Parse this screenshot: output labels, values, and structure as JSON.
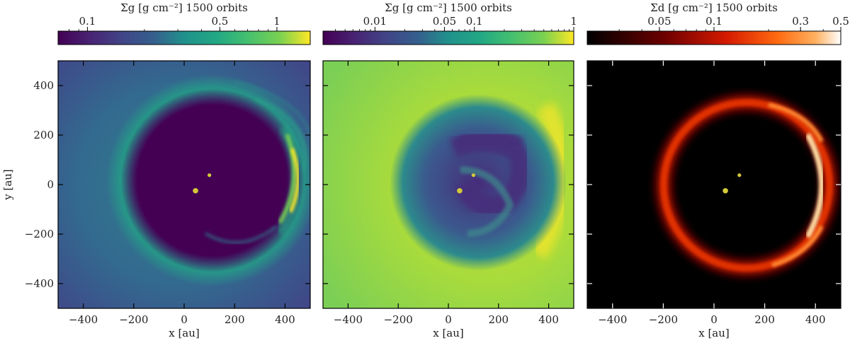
{
  "chart_data": [
    {
      "type": "heatmap",
      "title": "Σg [g cm⁻²] 1500 orbits",
      "xlabel": "x [au]",
      "ylabel": "y [au]",
      "xlim": [
        -500,
        500
      ],
      "ylim": [
        -500,
        500
      ],
      "colormap": "viridis",
      "colorbar": {
        "scale": "log",
        "range": [
          0.07,
          1.5
        ],
        "ticks": [
          0.1,
          0.5,
          1
        ],
        "tick_labels": [
          "0.1",
          "0.5",
          "1"
        ],
        "placement": "top"
      },
      "x_ticks": [
        -400,
        -200,
        0,
        200,
        400
      ],
      "x_tick_labels": [
        "−400",
        "−200",
        "0",
        "200",
        "400"
      ],
      "y_ticks": [
        -400,
        -200,
        0,
        200,
        400
      ],
      "y_tick_labels": [
        "−400",
        "−200",
        "0",
        "200",
        "400"
      ],
      "points": [
        {
          "x": 45,
          "y": -25
        },
        {
          "x": 100,
          "y": 38
        }
      ],
      "marker_color": "#d4c93a",
      "background_color": "#414487",
      "cavity_color": "#440154"
    },
    {
      "type": "heatmap",
      "title": "Σg [g cm⁻²] 1500 orbits",
      "xlabel": "x [au]",
      "ylabel": "",
      "xlim": [
        -500,
        500
      ],
      "ylim": [
        -500,
        500
      ],
      "colormap": "viridis",
      "colorbar": {
        "scale": "log",
        "range": [
          0.003,
          1
        ],
        "ticks": [
          0.01,
          0.05,
          0.1,
          1
        ],
        "tick_labels": [
          "0.01",
          "0.05",
          "0.1",
          "1"
        ],
        "placement": "top"
      },
      "x_ticks": [
        -400,
        -200,
        0,
        200,
        400
      ],
      "x_tick_labels": [
        "−400",
        "−200",
        "0",
        "200",
        "400"
      ],
      "y_ticks": [
        -400,
        -200,
        0,
        200,
        400
      ],
      "points": [
        {
          "x": 45,
          "y": -25
        },
        {
          "x": 100,
          "y": 38
        }
      ],
      "marker_color": "#d4c93a",
      "background_color": "#8fd744",
      "cavity_color": "#3b2f78"
    },
    {
      "type": "heatmap",
      "title": "Σd [g cm⁻²] 1500 orbits",
      "xlabel": "x [au]",
      "ylabel": "",
      "xlim": [
        -500,
        500
      ],
      "ylim": [
        -500,
        500
      ],
      "colormap": "gist_heat",
      "colorbar": {
        "scale": "log",
        "range": [
          0.02,
          0.5
        ],
        "ticks": [
          0.05,
          0.1,
          0.3,
          0.5
        ],
        "tick_labels": [
          "0.05",
          "0.1",
          "0.3",
          "0.5"
        ],
        "placement": "top"
      },
      "x_ticks": [
        -400,
        -200,
        0,
        200,
        400
      ],
      "x_tick_labels": [
        "−400",
        "−200",
        "0",
        "200",
        "400"
      ],
      "y_ticks": [
        -400,
        -200,
        0,
        200,
        400
      ],
      "points": [
        {
          "x": 45,
          "y": -25
        },
        {
          "x": 100,
          "y": 38
        }
      ],
      "marker_color": "#d4c93a",
      "background_color": "#000000",
      "ring": {
        "center_x": 130,
        "center_y": 0,
        "radius": 330
      }
    }
  ]
}
